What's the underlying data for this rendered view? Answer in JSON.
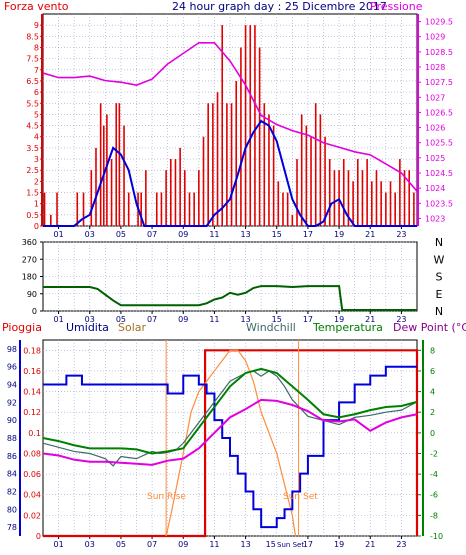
{
  "panel1": {
    "left_label": "Forza vento",
    "title": "24 hour graph day : 25 Dicembre 2017",
    "right_label": "Pressione",
    "left_ticks": [
      "0",
      "0.5",
      "1",
      "1.5",
      "2",
      "2.5",
      "3",
      "3.5",
      "4",
      "4.5",
      "5",
      "5.5",
      "6",
      "6.5",
      "7",
      "7.5",
      "8",
      "8.5",
      "9"
    ],
    "right_ticks": [
      "1023",
      "1023.5",
      "1024",
      "1024.5",
      "1025",
      "1025.5",
      "1026",
      "1026.5",
      "1027",
      "1027.5",
      "1028",
      "1028.5",
      "1029",
      "1029.5"
    ],
    "x_ticks": [
      "01",
      "03",
      "05",
      "07",
      "09",
      "11",
      "13",
      "15",
      "17",
      "19",
      "21",
      "23"
    ]
  },
  "panel2": {
    "left_ticks": [
      "0",
      "90",
      "180",
      "270",
      "360"
    ],
    "compass_letters": [
      "N",
      "W",
      "S",
      "E",
      "N"
    ],
    "x_ticks": [
      "01",
      "03",
      "05",
      "07",
      "09",
      "11",
      "13",
      "15",
      "17",
      "19",
      "21",
      "23"
    ]
  },
  "panel3": {
    "legend": {
      "pioggia": "Pioggia",
      "umidita": "Umidita",
      "solar": "Solar",
      "windchill": "Windchill",
      "temperatura": "Temperatura",
      "dewpoint": "Dew Point (°C)"
    },
    "hum_ticks": [
      "78",
      "80",
      "82",
      "84",
      "86",
      "88",
      "90",
      "92",
      "94",
      "96",
      "98"
    ],
    "rain_ticks": [
      "0",
      "0.02",
      "0.04",
      "0.06",
      "0.08",
      "0.1",
      "0.12",
      "0.14",
      "0.16",
      "0.18"
    ],
    "temp_ticks": [
      "-10",
      "-8",
      "-6",
      "-4",
      "-2",
      "0",
      "2",
      "4",
      "6",
      "8"
    ],
    "x_ticks": [
      "01",
      "03",
      "05",
      "07",
      "09",
      "11",
      "13",
      "15",
      "17",
      "19",
      "21",
      "23"
    ],
    "sun_rise_label": "Sun Rise",
    "sun_set_label": "Sun Set",
    "sun_set_tick": "Sun Set"
  },
  "colors": {
    "red": "#e00000",
    "blue": "#0000dd",
    "magenta": "#e000e0",
    "green": "#008000",
    "orange": "#ff8c3a",
    "darkgreen": "#006000",
    "teal": "#406a6a",
    "purple": "#8a008a",
    "navy": "#000080",
    "grid": "#9aa3d6"
  },
  "chart_data": [
    {
      "type": "bar",
      "title": "24 hour graph day : 25 Dicembre 2017",
      "ylabel": "Forza vento",
      "y2label": "Pressione",
      "x_range": [
        0,
        24
      ],
      "ylim": [
        0,
        9.5
      ],
      "y2lim": [
        1022.75,
        1029.75
      ],
      "series": [
        {
          "name": "Forza vento",
          "style": "bars",
          "x": [
            0.1,
            0.5,
            0.9,
            1.4,
            1.8,
            2.2,
            2.6,
            2.9,
            3.1,
            3.4,
            3.7,
            3.9,
            4.1,
            4.4,
            4.7,
            4.9,
            5.2,
            5.5,
            5.8,
            6.1,
            6.3,
            6.6,
            6.9,
            7.3,
            7.6,
            7.9,
            8.2,
            8.5,
            8.8,
            9.1,
            9.4,
            9.7,
            10.0,
            10.3,
            10.6,
            10.9,
            11.2,
            11.5,
            11.8,
            12.1,
            12.4,
            12.7,
            13.0,
            13.3,
            13.6,
            13.9,
            14.2,
            14.5,
            14.8,
            15.1,
            15.4,
            15.7,
            16.0,
            16.3,
            16.6,
            16.9,
            17.2,
            17.5,
            17.8,
            18.1,
            18.4,
            18.7,
            19.0,
            19.3,
            19.6,
            19.9,
            20.2,
            20.5,
            20.8,
            21.1,
            21.4,
            21.7,
            22.0,
            22.3,
            22.6,
            22.9,
            23.2,
            23.5,
            23.8
          ],
          "values": [
            1.5,
            0.5,
            1.5,
            0,
            0,
            1.5,
            1.5,
            0,
            2.5,
            3.5,
            5.5,
            4.5,
            5,
            3,
            5.5,
            5.5,
            4.5,
            1.5,
            0,
            1.5,
            1.5,
            2.5,
            0,
            1.5,
            1.5,
            2.5,
            3,
            3,
            3.5,
            2.5,
            1.5,
            1.5,
            2.5,
            4,
            5.5,
            5.5,
            6,
            9,
            5.5,
            5.5,
            6.5,
            8,
            9,
            9,
            9,
            8,
            5.5,
            5,
            4.5,
            2,
            1.5,
            1.5,
            0.5,
            3,
            5,
            4.5,
            4,
            5.5,
            5,
            4,
            3,
            2.5,
            2.5,
            3,
            2.5,
            2,
            3,
            2.5,
            3,
            2,
            2.5,
            2,
            1.5,
            2,
            1.5,
            3,
            2.5,
            2.5,
            1.5
          ]
        },
        {
          "name": "Vento medio",
          "style": "line",
          "x": [
            0,
            2,
            2.5,
            3,
            3.5,
            4,
            4.5,
            5,
            5.5,
            6,
            6.5,
            8,
            8.5,
            9,
            10,
            10.5,
            11,
            11.5,
            12,
            12.5,
            13,
            13.5,
            14,
            14.5,
            15,
            15.5,
            16,
            16.5,
            17,
            17.5,
            18,
            18.5,
            19,
            19.5,
            20,
            24
          ],
          "values": [
            0,
            0,
            0.3,
            0.5,
            1.5,
            2.5,
            3.5,
            3.2,
            2.5,
            1,
            0,
            0,
            0,
            0,
            0,
            0,
            0.5,
            0.8,
            1.2,
            2.3,
            3.5,
            4.2,
            4.7,
            4.5,
            3.8,
            2.5,
            1.2,
            0.5,
            0,
            0,
            0.2,
            1,
            1.2,
            0.5,
            0,
            0
          ]
        },
        {
          "name": "Pressione",
          "style": "line",
          "x": [
            0,
            1,
            2,
            3,
            4,
            5,
            6,
            7,
            8,
            9,
            10,
            11,
            12,
            13,
            14,
            15,
            16,
            17,
            18,
            19,
            20,
            21,
            22,
            23,
            24
          ],
          "values": [
            1027.8,
            1027.65,
            1027.65,
            1027.7,
            1027.55,
            1027.5,
            1027.4,
            1027.6,
            1028.1,
            1028.45,
            1028.8,
            1028.8,
            1028.2,
            1027.4,
            1026.4,
            1026.1,
            1025.9,
            1025.75,
            1025.5,
            1025.35,
            1025.2,
            1025.1,
            1024.8,
            1024.5,
            1023.9
          ]
        }
      ]
    },
    {
      "type": "line",
      "ylabel": "Direzione vento",
      "x_range": [
        0,
        24
      ],
      "ylim": [
        0,
        360
      ],
      "yticks": [
        0,
        90,
        180,
        270,
        360
      ],
      "series": [
        {
          "name": "Direzione vento",
          "x": [
            0,
            3,
            3.5,
            4,
            4.5,
            5,
            10,
            10.5,
            11,
            11.5,
            12,
            12.5,
            13,
            13.5,
            14,
            15,
            16,
            17,
            18,
            19,
            19.2,
            24
          ],
          "values": [
            125,
            125,
            115,
            85,
            55,
            30,
            30,
            40,
            60,
            70,
            95,
            85,
            95,
            120,
            130,
            130,
            125,
            130,
            130,
            130,
            5,
            5
          ]
        }
      ]
    },
    {
      "type": "line",
      "x_range": [
        0,
        24
      ],
      "y_hum_lim": [
        77,
        99
      ],
      "y_rain_lim": [
        0,
        0.19
      ],
      "y_temp_lim": [
        -10,
        9
      ],
      "sunrise_hour": 7.9,
      "sunset_hour": 16.4,
      "series": [
        {
          "name": "Pioggia",
          "axis": "rain",
          "x": [
            0,
            10.4,
            10.4,
            24,
            24
          ],
          "values": [
            0,
            0,
            0.18,
            0.18,
            0
          ]
        },
        {
          "name": "Umidita",
          "axis": "hum",
          "x": [
            0,
            1,
            1.5,
            2.5,
            4,
            5,
            6,
            8,
            9,
            10,
            10.5,
            11,
            11.5,
            12,
            12.5,
            13,
            13.5,
            14,
            14.5,
            15,
            15.5,
            16,
            16.5,
            17,
            18,
            19,
            20,
            21,
            22,
            23,
            24
          ],
          "values": [
            94,
            94,
            95,
            94,
            94,
            94,
            94,
            93,
            95,
            94,
            93,
            90,
            88,
            86,
            84,
            82,
            80,
            78,
            78,
            79,
            80,
            82,
            84,
            86,
            90,
            92,
            94,
            95,
            96,
            96,
            96
          ]
        },
        {
          "name": "Solar",
          "axis": "rain",
          "x": [
            7.9,
            8.2,
            8.6,
            9,
            9.5,
            10,
            10.5,
            11,
            11.5,
            12,
            12.5,
            13,
            13.5,
            14,
            14.5,
            15,
            15.5,
            16,
            16.2
          ],
          "values": [
            0,
            0.02,
            0.05,
            0.08,
            0.12,
            0.14,
            0.15,
            0.16,
            0.17,
            0.18,
            0.18,
            0.17,
            0.15,
            0.12,
            0.1,
            0.08,
            0.05,
            0.02,
            0
          ]
        },
        {
          "name": "Windchill",
          "axis": "temp",
          "x": [
            0,
            1,
            2,
            3,
            4,
            4.5,
            5,
            6,
            7,
            7.5,
            8,
            8.5,
            9,
            10,
            11,
            12,
            13,
            13.5,
            14,
            14.5,
            15,
            15.5,
            16,
            17,
            18,
            19,
            20,
            21,
            22,
            23,
            24
          ],
          "values": [
            -1,
            -1.4,
            -1.8,
            -2,
            -2.5,
            -3.2,
            -2.3,
            -2.5,
            -1.8,
            -2,
            -1.9,
            -1.7,
            -1,
            1,
            3,
            5,
            5.8,
            6,
            5.5,
            6,
            5.5,
            4.5,
            3.2,
            1.6,
            1.2,
            0.8,
            1.5,
            1.7,
            2,
            2.2,
            3
          ]
        },
        {
          "name": "Temperatura",
          "axis": "temp",
          "x": [
            0,
            1,
            2,
            3,
            4,
            5,
            6,
            7,
            8,
            9,
            10,
            11,
            12,
            13,
            14,
            15,
            16,
            17,
            18,
            19,
            20,
            21,
            22,
            23,
            24
          ],
          "values": [
            -0.5,
            -0.8,
            -1.2,
            -1.5,
            -1.5,
            -1.5,
            -1.6,
            -2,
            -1.8,
            -1.5,
            0.5,
            2.5,
            4.5,
            5.8,
            6.2,
            5.8,
            4.5,
            3.2,
            1.8,
            1.5,
            1.8,
            2.2,
            2.5,
            2.6,
            3.0
          ]
        },
        {
          "name": "Dew Point (°C)",
          "axis": "temp",
          "x": [
            0,
            1,
            2,
            3,
            4,
            5,
            6,
            7,
            8,
            9,
            10,
            11,
            12,
            13,
            14,
            15,
            16,
            17,
            18,
            19,
            20,
            21,
            22,
            23,
            24
          ],
          "values": [
            -2,
            -2.2,
            -2.6,
            -2.8,
            -2.8,
            -2.9,
            -3,
            -3.1,
            -2.7,
            -2.5,
            -1.5,
            0,
            1.5,
            2.3,
            3.2,
            3.1,
            2.7,
            2.1,
            1.2,
            1.1,
            1.3,
            0.2,
            1.0,
            1.5,
            1.8
          ]
        }
      ]
    }
  ]
}
